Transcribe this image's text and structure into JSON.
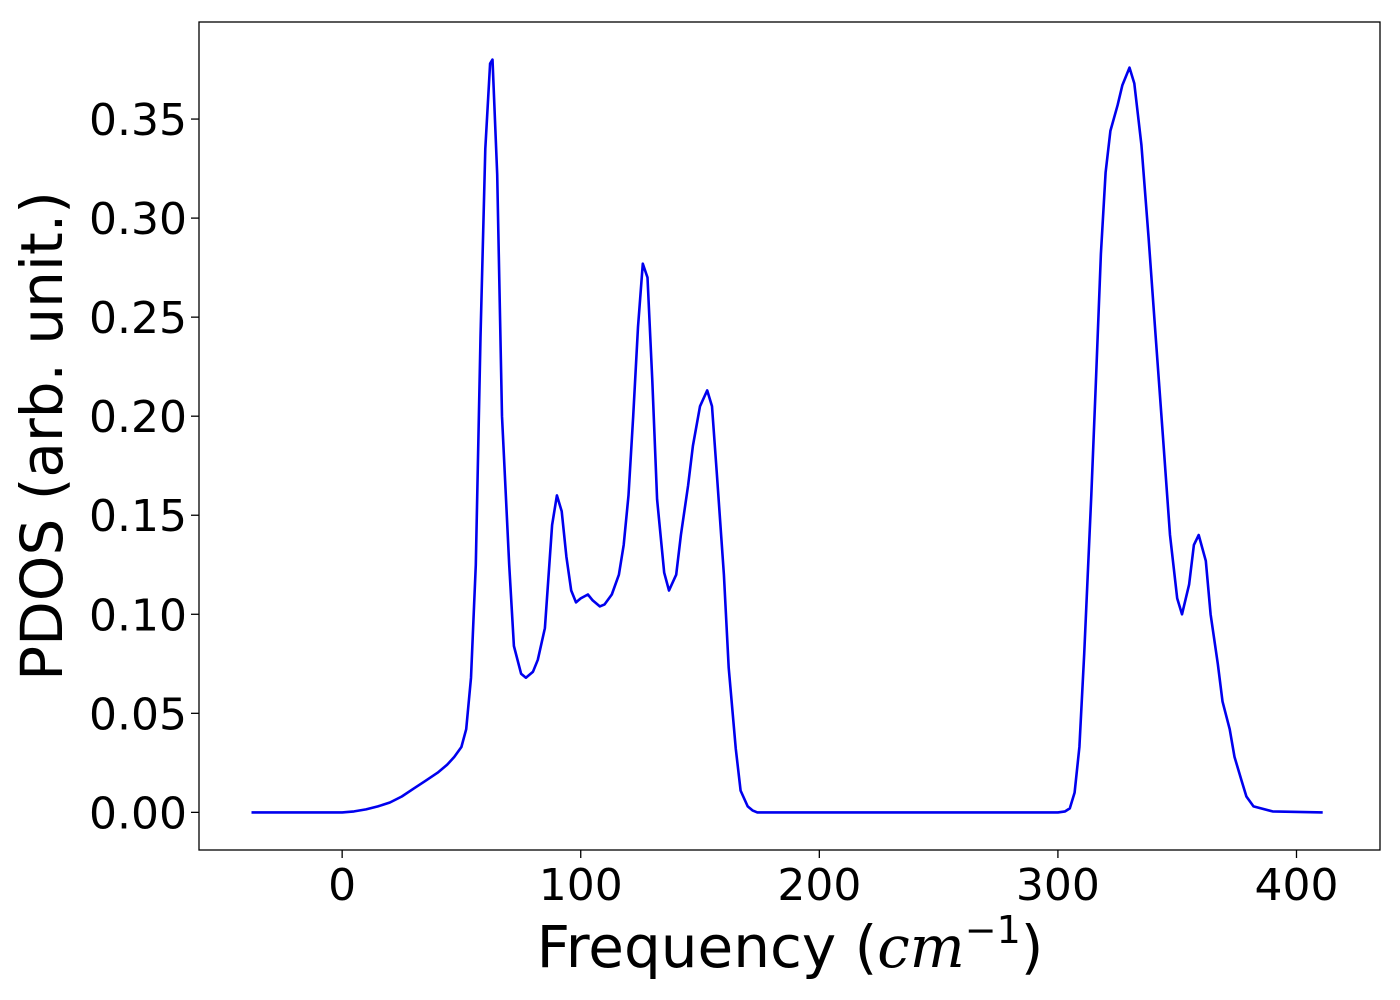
{
  "chart_data": {
    "type": "line",
    "xlabel_prefix": "Frequency (",
    "xlabel_unit": "cm",
    "xlabel_exponent": "−1",
    "xlabel_suffix": ")",
    "ylabel": "PDOS (arb. unit.)",
    "xlim": [
      -60,
      435
    ],
    "ylim": [
      -0.019,
      0.399
    ],
    "xticks": [
      0,
      100,
      200,
      300,
      400
    ],
    "xtick_labels": [
      "0",
      "100",
      "200",
      "300",
      "400"
    ],
    "yticks": [
      0.0,
      0.05,
      0.1,
      0.15,
      0.2,
      0.25,
      0.3,
      0.35
    ],
    "ytick_labels": [
      "0.00",
      "0.05",
      "0.10",
      "0.15",
      "0.20",
      "0.25",
      "0.30",
      "0.35"
    ],
    "grid": false,
    "series": [
      {
        "color": "#0000ee",
        "x": [
          -38,
          0,
          5,
          10,
          15,
          20,
          25,
          30,
          35,
          40,
          44,
          47,
          50,
          52,
          54,
          56,
          58,
          60,
          62,
          63,
          65,
          67,
          70,
          72,
          75,
          77,
          80,
          82,
          85,
          88,
          90,
          92,
          94,
          96,
          98,
          100,
          103,
          105,
          108,
          110,
          113,
          116,
          118,
          120,
          122,
          124,
          126,
          128,
          130,
          132,
          135,
          137,
          140,
          142,
          145,
          147,
          150,
          153,
          155,
          157,
          160,
          162,
          165,
          167,
          170,
          172,
          174,
          177,
          180,
          200,
          250,
          300,
          303,
          305,
          307,
          309,
          311,
          314,
          316,
          318,
          320,
          322,
          325,
          327,
          330,
          332,
          335,
          338,
          341,
          344,
          347,
          350,
          352,
          355,
          357,
          359,
          362,
          364,
          367,
          369,
          372,
          374,
          377,
          379,
          382,
          390,
          411
        ],
        "y": [
          0.0,
          0.0,
          0.0005,
          0.0015,
          0.003,
          0.005,
          0.008,
          0.012,
          0.016,
          0.02,
          0.024,
          0.028,
          0.033,
          0.042,
          0.068,
          0.125,
          0.24,
          0.335,
          0.378,
          0.38,
          0.322,
          0.2,
          0.125,
          0.084,
          0.07,
          0.068,
          0.071,
          0.077,
          0.093,
          0.145,
          0.16,
          0.152,
          0.129,
          0.112,
          0.106,
          0.108,
          0.11,
          0.107,
          0.104,
          0.105,
          0.11,
          0.12,
          0.135,
          0.16,
          0.2,
          0.245,
          0.277,
          0.27,
          0.218,
          0.158,
          0.121,
          0.112,
          0.12,
          0.14,
          0.165,
          0.185,
          0.205,
          0.213,
          0.205,
          0.172,
          0.12,
          0.073,
          0.032,
          0.011,
          0.003,
          0.001,
          0.0,
          0.0,
          0.0,
          0.0,
          0.0,
          0.0,
          0.0005,
          0.002,
          0.01,
          0.033,
          0.08,
          0.16,
          0.22,
          0.282,
          0.323,
          0.344,
          0.357,
          0.367,
          0.376,
          0.368,
          0.337,
          0.29,
          0.24,
          0.19,
          0.14,
          0.108,
          0.1,
          0.115,
          0.135,
          0.14,
          0.127,
          0.1,
          0.075,
          0.056,
          0.042,
          0.028,
          0.016,
          0.008,
          0.003,
          0.0005,
          0.0
        ]
      }
    ]
  }
}
